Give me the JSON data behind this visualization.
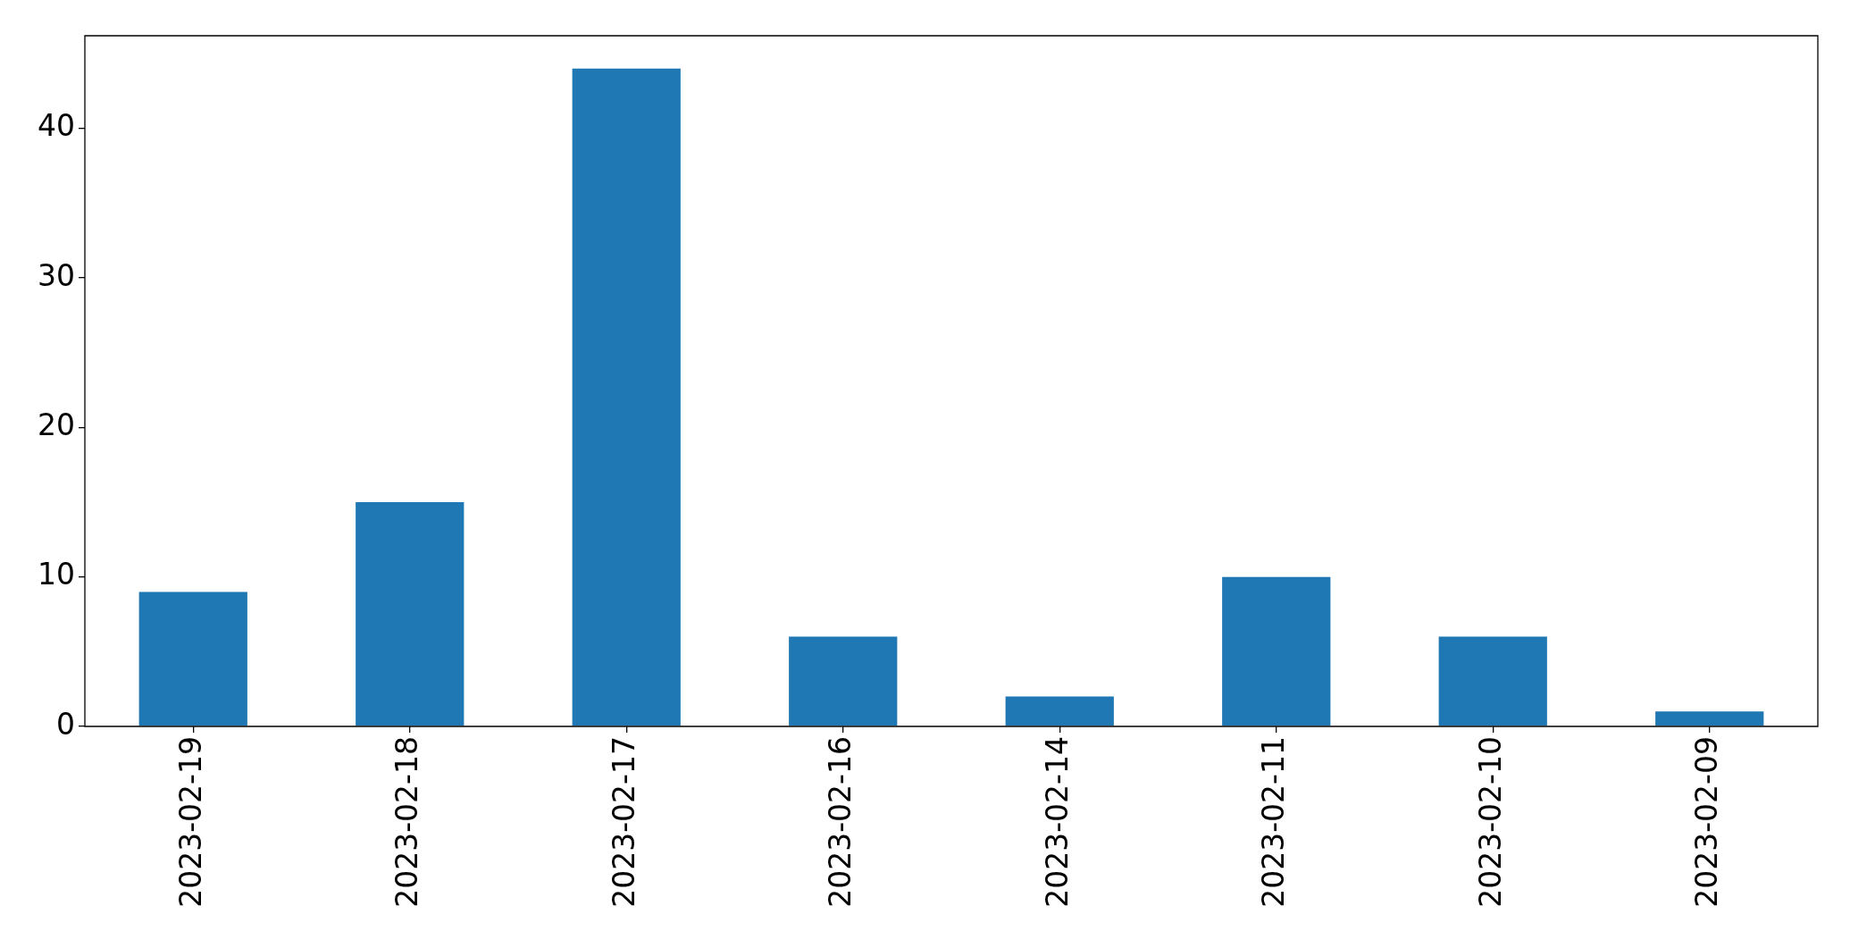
{
  "chart_data": {
    "type": "bar",
    "categories": [
      "2023-02-19",
      "2023-02-18",
      "2023-02-17",
      "2023-02-16",
      "2023-02-14",
      "2023-02-11",
      "2023-02-10",
      "2023-02-09"
    ],
    "values": [
      9,
      15,
      44,
      6,
      2,
      10,
      6,
      1
    ],
    "color": "#1f77b4",
    "ylim": [
      0,
      46.2
    ],
    "yticks": [
      0,
      10,
      20,
      30,
      40
    ]
  }
}
